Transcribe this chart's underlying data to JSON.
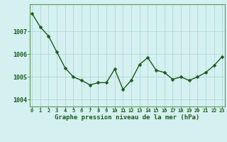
{
  "x": [
    0,
    1,
    2,
    3,
    4,
    5,
    6,
    7,
    8,
    9,
    10,
    11,
    12,
    13,
    14,
    15,
    16,
    17,
    18,
    19,
    20,
    21,
    22,
    23
  ],
  "y": [
    1007.8,
    1007.2,
    1006.8,
    1006.1,
    1005.4,
    1005.0,
    1004.85,
    1004.65,
    1004.75,
    1004.75,
    1005.35,
    1004.45,
    1004.85,
    1005.55,
    1005.85,
    1005.3,
    1005.2,
    1004.9,
    1005.0,
    1004.85,
    1005.0,
    1005.2,
    1005.5,
    1005.9
  ],
  "ylim": [
    1003.7,
    1008.2
  ],
  "xlim": [
    -0.3,
    23.3
  ],
  "yticks": [
    1004,
    1005,
    1006,
    1007
  ],
  "xticks": [
    0,
    1,
    2,
    3,
    4,
    5,
    6,
    7,
    8,
    9,
    10,
    11,
    12,
    13,
    14,
    15,
    16,
    17,
    18,
    19,
    20,
    21,
    22,
    23
  ],
  "xtick_labels": [
    "0",
    "1",
    "2",
    "3",
    "4",
    "5",
    "6",
    "7",
    "8",
    "9",
    "10",
    "11",
    "12",
    "13",
    "14",
    "15",
    "16",
    "17",
    "18",
    "19",
    "20",
    "21",
    "22",
    "23"
  ],
  "line_color": "#1a5c1a",
  "marker_color": "#1a5c1a",
  "bg_color": "#d5f0f0",
  "fig_bg_color": "#d5f0f0",
  "grid_color": "#a8d4d4",
  "xlabel": "Graphe pression niveau de la mer (hPa)",
  "xlabel_color": "#1a5c1a",
  "tick_color": "#1a5c1a",
  "spine_color": "#5a9a5a",
  "marker_size": 2.5,
  "line_width": 1.0,
  "ytick_fontsize": 6,
  "xtick_fontsize": 5,
  "xlabel_fontsize": 6.5
}
